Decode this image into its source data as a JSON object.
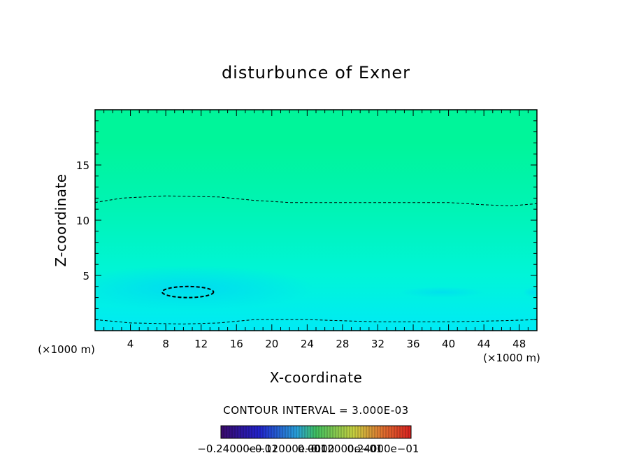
{
  "chart_data": {
    "type": "contour",
    "title": "disturbunce of Exner",
    "xlabel": "X-coordinate",
    "ylabel": "Z-coordinate",
    "x_unit_left": "(×1000 m)",
    "x_unit_right": "(×1000 m)",
    "xlim": [
      0,
      50
    ],
    "ylim": [
      0,
      20
    ],
    "x_ticks": [
      4,
      8,
      12,
      16,
      20,
      24,
      28,
      32,
      36,
      40,
      44,
      48
    ],
    "y_ticks": [
      5,
      10,
      15
    ],
    "contour_interval_text": "CONTOUR INTERVAL = 3.000E-03",
    "colorbar_labels_text": "−0.24000e−01",
    "colorbar_labels_overlap": [
      "−0.24000e−01",
      "−0.12000e−01",
      "0.0000",
      "0.12000e−01",
      "0.24000e−01"
    ],
    "colorbar_range": [
      -0.024,
      0.024
    ],
    "contours": [
      {
        "level": "upper dashed",
        "points": [
          [
            0,
            11.6
          ],
          [
            3,
            12.0
          ],
          [
            8,
            12.2
          ],
          [
            14,
            12.1
          ],
          [
            18,
            11.8
          ],
          [
            22,
            11.6
          ],
          [
            30,
            11.6
          ],
          [
            40,
            11.6
          ],
          [
            44,
            11.4
          ],
          [
            47,
            11.3
          ],
          [
            50,
            11.5
          ]
        ]
      },
      {
        "level": "lower dashed",
        "points": [
          [
            0,
            1.0
          ],
          [
            4,
            0.7
          ],
          [
            10,
            0.6
          ],
          [
            14,
            0.7
          ],
          [
            18,
            1.0
          ],
          [
            24,
            1.0
          ],
          [
            32,
            0.8
          ],
          [
            40,
            0.8
          ],
          [
            46,
            0.9
          ],
          [
            50,
            1.0
          ]
        ]
      },
      {
        "level": "closed minimum",
        "center": [
          10.5,
          3.5
        ],
        "half_width": [
          2.9,
          0.5
        ]
      }
    ],
    "fill_colors": {
      "top": "#00f59a",
      "upper_mid": "#00f4b5",
      "mid": "#00f5d8",
      "lower": "#00f0ee",
      "bottom": "#00eaf5",
      "core": "#00d9f2"
    }
  }
}
